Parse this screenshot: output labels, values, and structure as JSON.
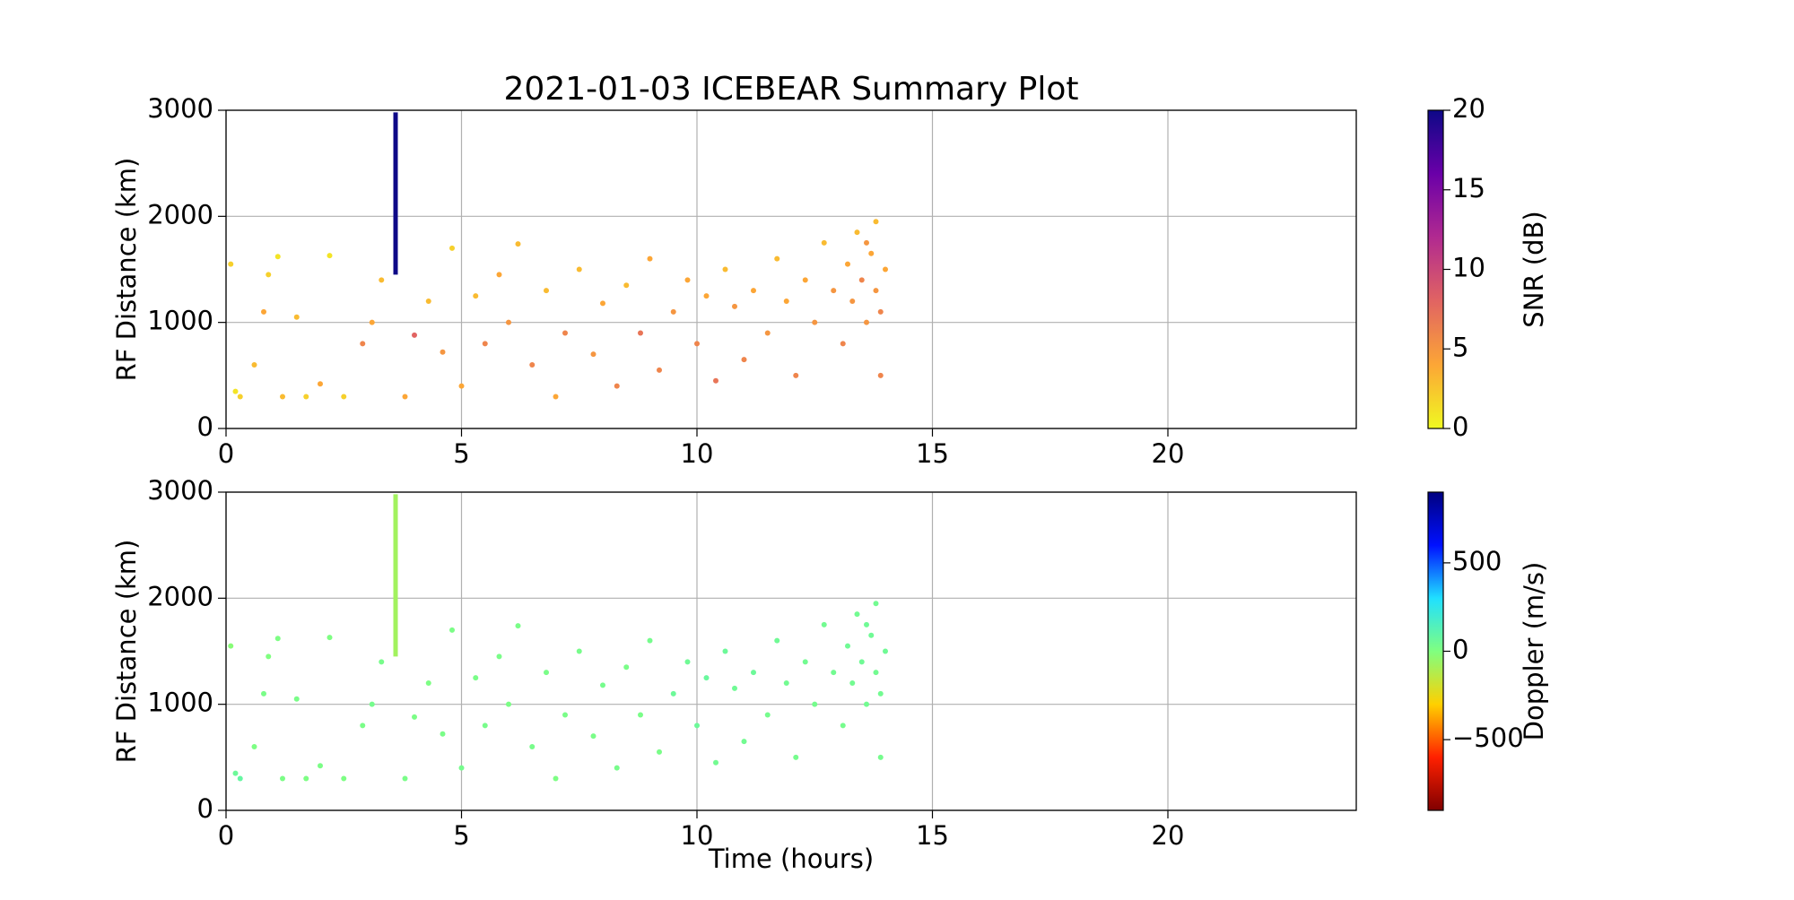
{
  "chart_data": [
    {
      "type": "scatter",
      "title": "2021-01-03 ICEBEAR Summary Plot",
      "ylabel": "RF Distance (km)",
      "x": [
        0.1,
        0.2,
        0.3,
        0.6,
        0.8,
        0.9,
        1.1,
        1.2,
        1.5,
        1.7,
        2.0,
        2.2,
        2.5,
        2.9,
        3.1,
        3.3,
        3.8,
        4.0,
        4.3,
        4.6,
        4.8,
        5.0,
        5.3,
        5.5,
        5.8,
        6.0,
        6.2,
        6.5,
        6.8,
        7.0,
        7.2,
        7.5,
        7.8,
        8.0,
        8.3,
        8.5,
        8.8,
        9.0,
        9.2,
        9.5,
        9.8,
        10.0,
        10.2,
        10.4,
        10.6,
        10.8,
        11.0,
        11.2,
        11.5,
        11.7,
        11.9,
        12.1,
        12.3,
        12.5,
        12.7,
        12.9,
        13.1,
        13.2,
        13.3,
        13.4,
        13.5,
        13.6,
        13.7,
        13.8,
        13.9,
        14.0,
        13.8,
        13.6,
        13.9
      ],
      "y": [
        1550,
        350,
        300,
        600,
        1100,
        1450,
        1620,
        300,
        1050,
        300,
        420,
        1630,
        300,
        800,
        1000,
        1400,
        300,
        880,
        1200,
        720,
        1700,
        400,
        1250,
        800,
        1450,
        1000,
        1740,
        600,
        1300,
        300,
        900,
        1500,
        700,
        1180,
        400,
        1350,
        900,
        1600,
        550,
        1100,
        1400,
        800,
        1250,
        450,
        1500,
        1150,
        650,
        1300,
        900,
        1600,
        1200,
        500,
        1400,
        1000,
        1750,
        1300,
        800,
        1550,
        1200,
        1850,
        1400,
        1000,
        1650,
        1300,
        500,
        1500,
        1950,
        1750,
        1100
      ],
      "c": [
        2,
        1,
        2,
        3,
        4,
        2,
        1,
        3,
        3,
        2,
        4,
        1,
        2,
        6,
        4,
        3,
        4,
        8,
        3,
        5,
        2,
        4,
        3,
        6,
        4,
        5,
        3,
        6,
        3,
        4,
        6,
        3,
        5,
        4,
        6,
        3,
        7,
        4,
        6,
        5,
        4,
        6,
        4,
        7,
        3,
        5,
        6,
        4,
        5,
        3,
        4,
        6,
        4,
        5,
        3,
        5,
        6,
        4,
        5,
        3,
        6,
        5,
        4,
        5,
        6,
        4,
        3,
        5,
        6
      ],
      "line": {
        "x": [
          3.6,
          3.6
        ],
        "y": [
          1450,
          2980
        ],
        "c": 20
      },
      "clim": [
        0,
        20
      ],
      "cticks": [
        0,
        5,
        10,
        15,
        20
      ],
      "clabel": "SNR (dB)",
      "colormap": [
        "#f0f921",
        "#fca636",
        "#e16462",
        "#b12a90",
        "#6a00a8",
        "#0d0887"
      ],
      "xlim": [
        0,
        24
      ],
      "xticks": [
        0,
        5,
        10,
        15,
        20
      ],
      "ylim": [
        0,
        3000
      ],
      "yticks": [
        0,
        1000,
        2000,
        3000
      ],
      "grid": true
    },
    {
      "type": "scatter",
      "xlabel": "Time (hours)",
      "ylabel": "RF Distance (km)",
      "x": [
        0.1,
        0.2,
        0.3,
        0.6,
        0.8,
        0.9,
        1.1,
        1.2,
        1.5,
        1.7,
        2.0,
        2.2,
        2.5,
        2.9,
        3.1,
        3.3,
        3.8,
        4.0,
        4.3,
        4.6,
        4.8,
        5.0,
        5.3,
        5.5,
        5.8,
        6.0,
        6.2,
        6.5,
        6.8,
        7.0,
        7.2,
        7.5,
        7.8,
        8.0,
        8.3,
        8.5,
        8.8,
        9.0,
        9.2,
        9.5,
        9.8,
        10.0,
        10.2,
        10.4,
        10.6,
        10.8,
        11.0,
        11.2,
        11.5,
        11.7,
        11.9,
        12.1,
        12.3,
        12.5,
        12.7,
        12.9,
        13.1,
        13.2,
        13.3,
        13.4,
        13.5,
        13.6,
        13.7,
        13.8,
        13.9,
        14.0,
        13.8,
        13.6,
        13.9
      ],
      "y": [
        1550,
        350,
        300,
        600,
        1100,
        1450,
        1620,
        300,
        1050,
        300,
        420,
        1630,
        300,
        800,
        1000,
        1400,
        300,
        880,
        1200,
        720,
        1700,
        400,
        1250,
        800,
        1450,
        1000,
        1740,
        600,
        1300,
        300,
        900,
        1500,
        700,
        1180,
        400,
        1350,
        900,
        1600,
        550,
        1100,
        1400,
        800,
        1250,
        450,
        1500,
        1150,
        650,
        1300,
        900,
        1600,
        1200,
        500,
        1400,
        1000,
        1750,
        1300,
        800,
        1550,
        1200,
        1850,
        1400,
        1000,
        1650,
        1300,
        500,
        1500,
        1950,
        1750,
        1100
      ],
      "c": [
        -20,
        60,
        80,
        10,
        20,
        0,
        10,
        15,
        20,
        10,
        15,
        5,
        10,
        20,
        30,
        25,
        20,
        15,
        10,
        20,
        15,
        30,
        20,
        25,
        20,
        15,
        20,
        25,
        20,
        10,
        20,
        25,
        20,
        30,
        25,
        20,
        20,
        30,
        20,
        60,
        50,
        60,
        70,
        40,
        60,
        50,
        40,
        60,
        30,
        50,
        40,
        30,
        40,
        30,
        40,
        40,
        30,
        50,
        40,
        40,
        50,
        40,
        50,
        40,
        30,
        50,
        40,
        50,
        40
      ],
      "line": {
        "x": [
          3.6,
          3.6
        ],
        "y": [
          1450,
          2980
        ],
        "c": -80
      },
      "clim": [
        -900,
        900
      ],
      "cticks": [
        {
          "value": -500,
          "label": "−500"
        },
        0,
        500
      ],
      "clabel": "Doppler (m/s)",
      "colormap": [
        "#800000",
        "#ff2000",
        "#ffd000",
        "#80ff80",
        "#20e0ff",
        "#0010ff",
        "#000080"
      ],
      "xlim": [
        0,
        24
      ],
      "xticks": [
        0,
        5,
        10,
        15,
        20
      ],
      "ylim": [
        0,
        3000
      ],
      "yticks": [
        0,
        1000,
        2000,
        3000
      ],
      "grid": true
    }
  ]
}
